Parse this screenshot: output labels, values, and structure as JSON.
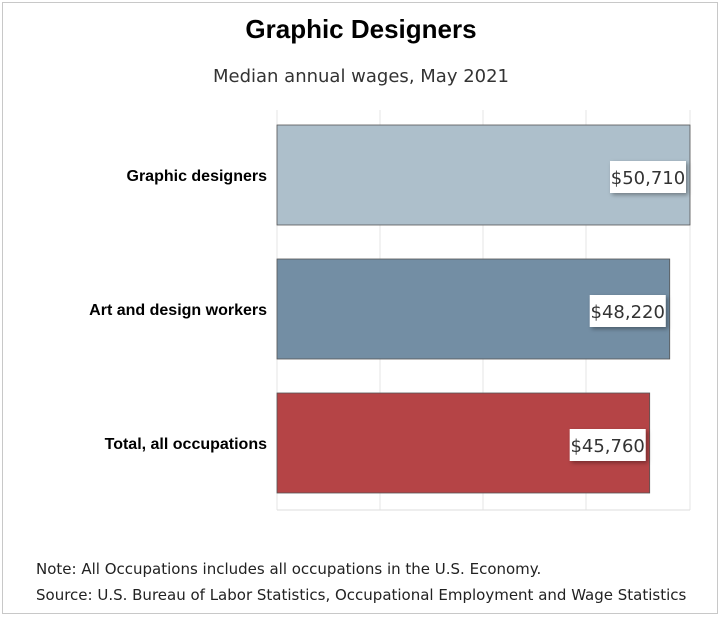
{
  "chart_data": {
    "type": "bar",
    "orientation": "horizontal",
    "title": "Graphic Designers",
    "subtitle": "Median annual wages, May 2021",
    "categories": [
      "Graphic designers",
      "Art and design workers",
      "Total, all occupations"
    ],
    "values": [
      50710,
      48220,
      45760
    ],
    "value_labels": [
      "$50,710",
      "$48,220",
      "$45,760"
    ],
    "colors": [
      "#adbfcb",
      "#738ea4",
      "#b54446"
    ],
    "xlim": [
      0,
      50710
    ],
    "grid": true,
    "legend": "none"
  },
  "notes": {
    "note": "Note: All Occupations includes all occupations in the U.S. Economy.",
    "source": "Source: U.S. Bureau of Labor Statistics, Occupational Employment and Wage Statistics"
  }
}
